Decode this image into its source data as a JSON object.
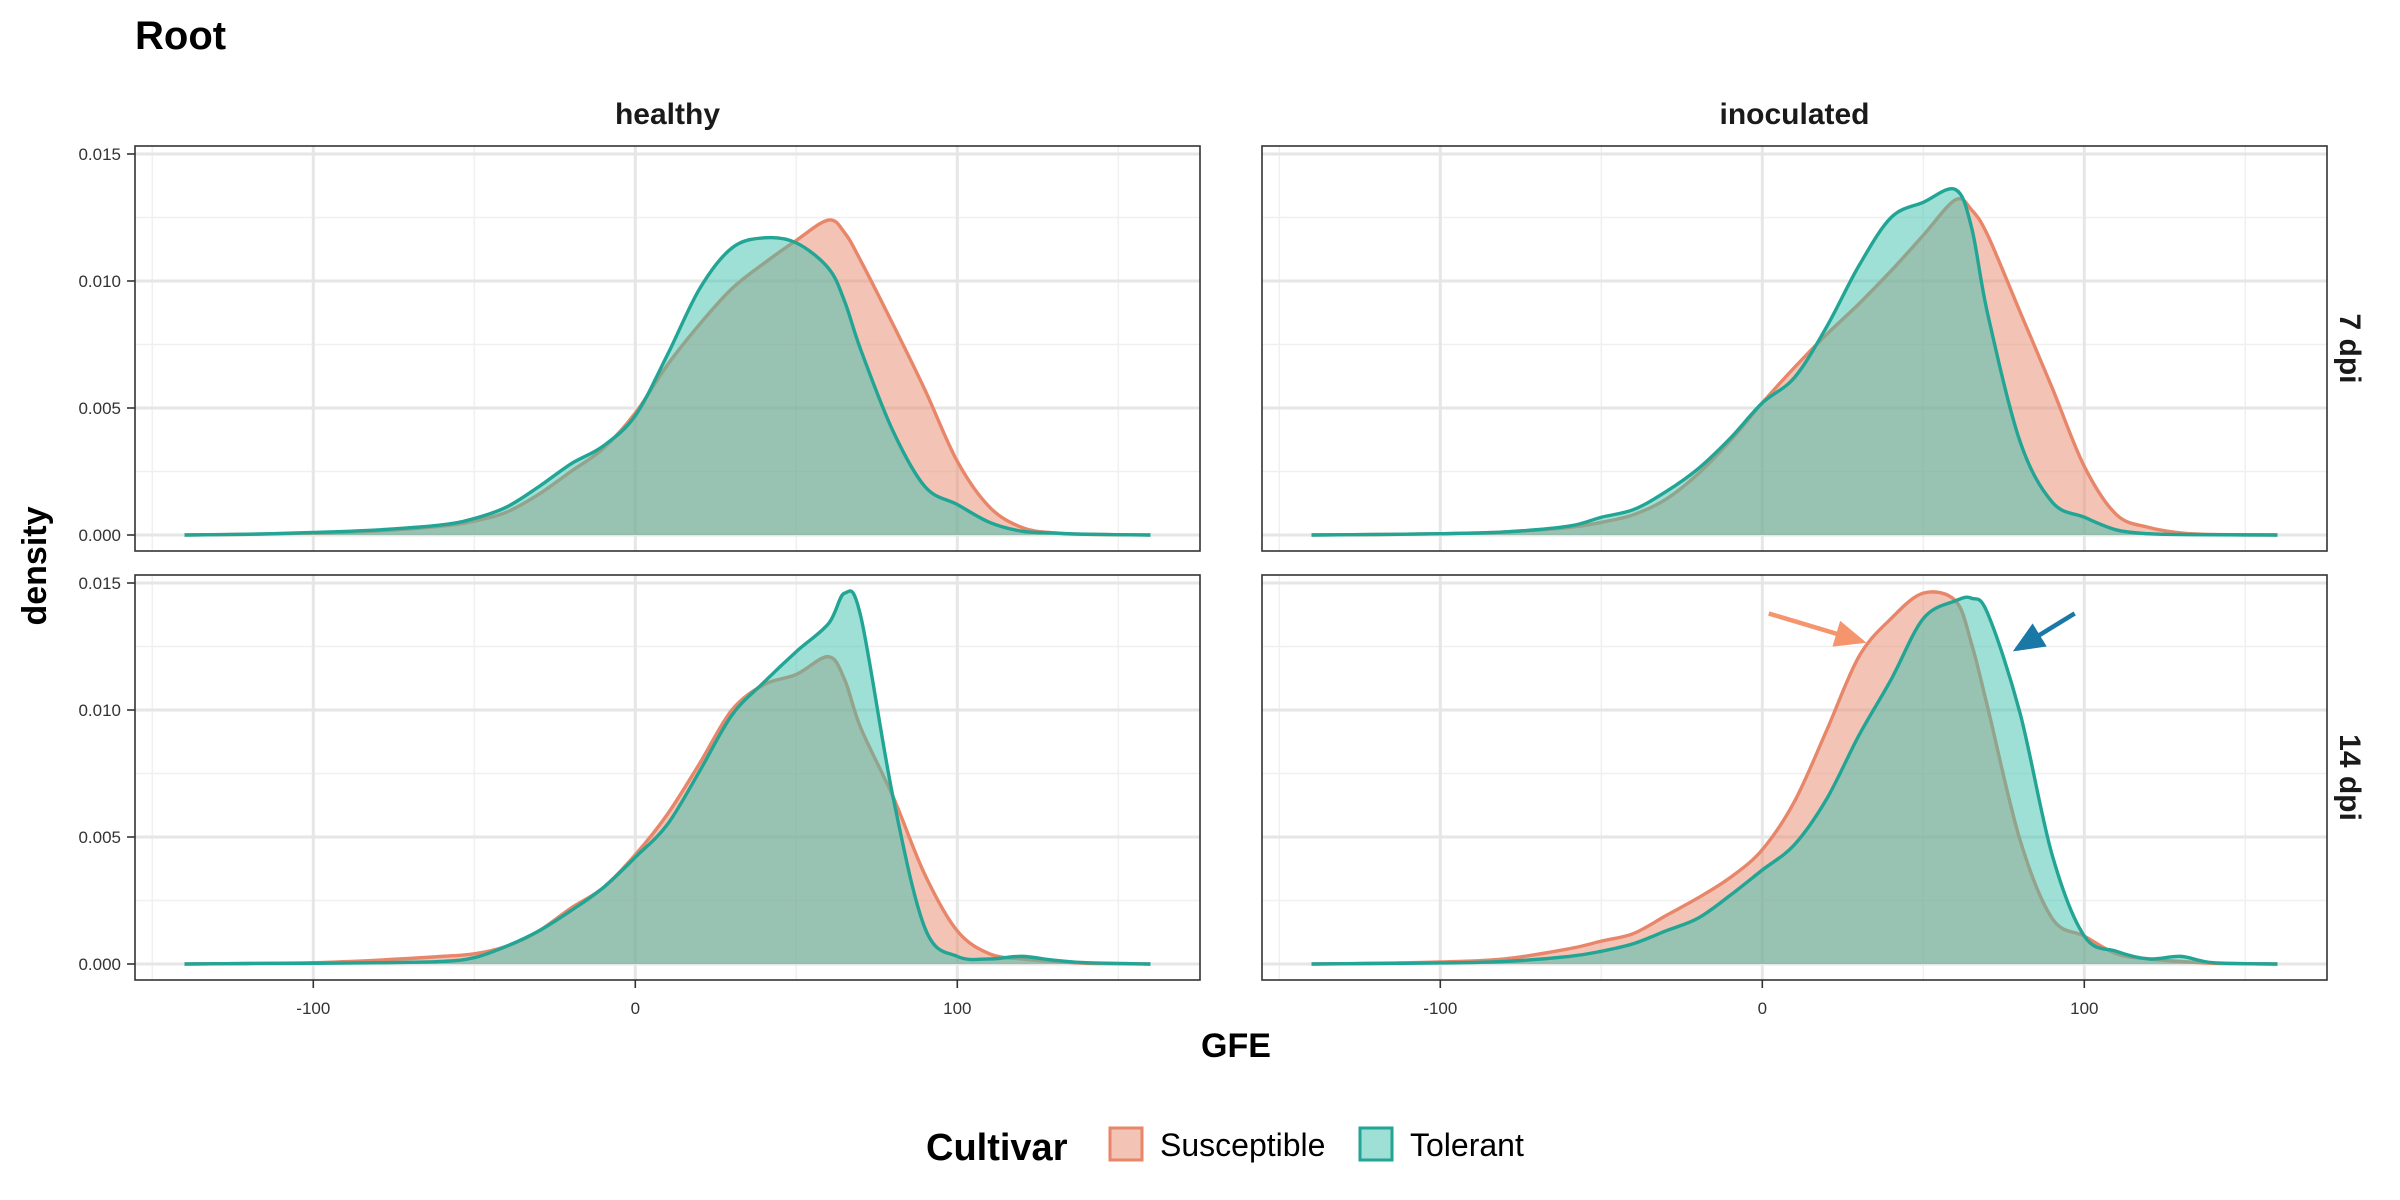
{
  "chart_data": {
    "type": "area",
    "title": "Root",
    "xlabel": "GFE",
    "ylabel": "density",
    "xlim": [
      -140,
      160
    ],
    "ylim": [
      0,
      0.015
    ],
    "x_ticks": [
      -100,
      0,
      100
    ],
    "x_tick_labels": [
      "-100",
      "0",
      "100"
    ],
    "y_ticks": [
      0,
      0.005,
      0.01,
      0.015
    ],
    "y_tick_labels": [
      "0.000",
      "0.005",
      "0.010",
      "0.015"
    ],
    "grid": true,
    "col_facets": [
      "healthy",
      "inoculated"
    ],
    "row_facets": [
      "7 dpi",
      "14 dpi"
    ],
    "legend": {
      "title": "Cultivar",
      "position": "bottom",
      "entries": [
        "Susceptible",
        "Tolerant"
      ]
    },
    "colors": {
      "Susceptible": "#e8866a",
      "Tolerant": "#22a594",
      "Susceptible_fill": "#e88a6e",
      "Tolerant_fill": "#3dbfad",
      "arrow_susceptible": "#f4956e",
      "arrow_tolerant": "#1a78a6"
    },
    "x": [
      -140,
      -120,
      -100,
      -80,
      -60,
      -50,
      -40,
      -30,
      -20,
      -10,
      0,
      10,
      20,
      30,
      40,
      50,
      60,
      65,
      70,
      80,
      90,
      100,
      110,
      120,
      130,
      140,
      160
    ],
    "panels": [
      {
        "col": "healthy",
        "row": "7 dpi",
        "series": [
          {
            "name": "Susceptible",
            "values": [
              0,
              3e-05,
              8e-05,
              0.00016,
              0.00035,
              0.00055,
              0.0009,
              0.0016,
              0.0025,
              0.0034,
              0.0048,
              0.0067,
              0.0083,
              0.0097,
              0.0107,
              0.0116,
              0.0124,
              0.0119,
              0.0108,
              0.0083,
              0.0057,
              0.0029,
              0.0011,
              0.0003,
              8e-05,
              3e-05,
              0
            ]
          },
          {
            "name": "Tolerant",
            "values": [
              0,
              3e-05,
              0.0001,
              0.0002,
              0.0004,
              0.00065,
              0.0011,
              0.0019,
              0.0028,
              0.0035,
              0.0047,
              0.0071,
              0.0097,
              0.0113,
              0.0117,
              0.0115,
              0.0105,
              0.0092,
              0.0073,
              0.0041,
              0.0019,
              0.0012,
              0.0005,
              0.00015,
              8e-05,
              3e-05,
              0
            ]
          }
        ]
      },
      {
        "col": "inoculated",
        "row": "7 dpi",
        "series": [
          {
            "name": "Susceptible",
            "values": [
              0,
              2e-05,
              5e-05,
              0.00012,
              0.0003,
              0.0005,
              0.0008,
              0.0014,
              0.0024,
              0.0037,
              0.0052,
              0.0066,
              0.0079,
              0.0091,
              0.0104,
              0.0118,
              0.0132,
              0.0128,
              0.0118,
              0.0088,
              0.0058,
              0.0027,
              0.0008,
              0.0003,
              8e-05,
              2e-05,
              0
            ]
          },
          {
            "name": "Tolerant",
            "values": [
              0,
              2e-05,
              5e-05,
              0.00012,
              0.00035,
              0.0007,
              0.001,
              0.0017,
              0.0026,
              0.0038,
              0.0052,
              0.0062,
              0.0082,
              0.0106,
              0.0125,
              0.0131,
              0.0136,
              0.0121,
              0.0087,
              0.0037,
              0.0013,
              0.0007,
              0.0002,
              5e-05,
              2e-05,
              1e-05,
              0
            ]
          }
        ]
      },
      {
        "col": "healthy",
        "row": "14 dpi",
        "series": [
          {
            "name": "Susceptible",
            "values": [
              0,
              2e-05,
              5e-05,
              0.00015,
              0.0003,
              0.0004,
              0.0007,
              0.0013,
              0.0022,
              0.003,
              0.0043,
              0.0059,
              0.0079,
              0.01,
              0.011,
              0.0114,
              0.0121,
              0.0112,
              0.0093,
              0.0066,
              0.0035,
              0.0013,
              0.0004,
              0.0002,
              0.0001,
              3e-05,
              0
            ]
          },
          {
            "name": "Tolerant",
            "values": [
              0,
              2e-05,
              3e-05,
              5e-05,
              0.0001,
              0.00025,
              0.0007,
              0.0013,
              0.0021,
              0.003,
              0.0042,
              0.0055,
              0.0076,
              0.0098,
              0.0111,
              0.0123,
              0.0134,
              0.0146,
              0.0137,
              0.0066,
              0.0014,
              0.0003,
              0.0002,
              0.0003,
              0.00015,
              5e-05,
              0
            ]
          }
        ]
      },
      {
        "col": "inoculated",
        "row": "14 dpi",
        "series": [
          {
            "name": "Susceptible",
            "values": [
              0,
              3e-05,
              8e-05,
              0.0002,
              0.0006,
              0.0009,
              0.0012,
              0.0019,
              0.0026,
              0.0034,
              0.0045,
              0.0064,
              0.0092,
              0.0121,
              0.0136,
              0.0146,
              0.0143,
              0.0126,
              0.0101,
              0.0049,
              0.0018,
              0.0011,
              0.0004,
              0.0002,
              0.0001,
              3e-05,
              0
            ]
          },
          {
            "name": "Tolerant",
            "values": [
              0,
              2e-05,
              4e-05,
              0.0001,
              0.0003,
              0.0005,
              0.0008,
              0.0013,
              0.0018,
              0.0027,
              0.0037,
              0.0047,
              0.0065,
              0.009,
              0.0112,
              0.0136,
              0.0143,
              0.0144,
              0.0138,
              0.0099,
              0.0043,
              0.0011,
              0.0005,
              0.0002,
              0.0003,
              5e-05,
              0
            ]
          }
        ]
      }
    ],
    "annotations": [
      {
        "type": "arrow",
        "panel": "inoculated / 14 dpi",
        "from": [
          2,
          0.0138
        ],
        "to": [
          31,
          0.0127
        ],
        "color": "arrow_susceptible"
      },
      {
        "type": "arrow",
        "panel": "inoculated / 14 dpi",
        "from": [
          97,
          0.0138
        ],
        "to": [
          79,
          0.0124
        ],
        "color": "arrow_tolerant"
      }
    ]
  }
}
